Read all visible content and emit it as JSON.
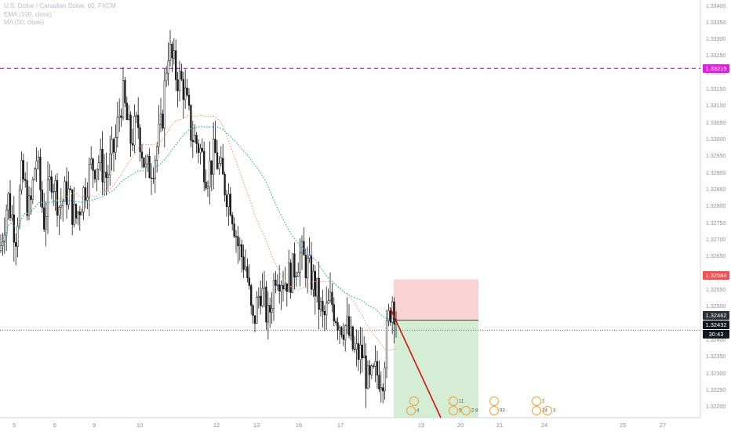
{
  "legend": {
    "symbol": "U.S. Dollar / Canadian Dollar, 60, FXCM",
    "ema": "EMA (100, close)",
    "ma": "MA (50, close)"
  },
  "colors": {
    "candle": "#1a1a1a",
    "ema": "#26b0c8",
    "ma": "#f5a06e",
    "resistance": "#e020e0",
    "stop": "#f7c8c8",
    "target": "#cbe8cb",
    "projection": "#d01010",
    "stop_label": "#ef5350",
    "entry_label": "#2a2e39",
    "last_label": "#131722"
  },
  "chart_data": {
    "type": "candlestick",
    "title": "U.S. Dollar / Canadian Dollar, 60, FXCM",
    "y_axis": {
      "min": 1.3217,
      "max": 1.3342,
      "ticks": [
        "1.33400",
        "1.33350",
        "1.33300",
        "1.33250",
        "1.33200",
        "1.33150",
        "1.33100",
        "1.33050",
        "1.33000",
        "1.32950",
        "1.32900",
        "1.32850",
        "1.32800",
        "1.32750",
        "1.32700",
        "1.32650",
        "1.32600",
        "1.32550",
        "1.32500",
        "1.32450",
        "1.32400",
        "1.32350",
        "1.32300",
        "1.32250",
        "1.32200"
      ]
    },
    "x_axis": {
      "ticks": [
        "5",
        "6",
        "9",
        "10",
        "12",
        "13",
        "16",
        "17",
        "19",
        "20",
        "21",
        "24",
        "25",
        "27"
      ]
    },
    "price_labels": {
      "resistance": "1.33215",
      "stop": "1.32584",
      "entry": "1.32462",
      "last": "1.32432",
      "countdown": "30:43"
    },
    "indicators": [
      "EMA (100, close)",
      "MA (50, close)"
    ],
    "path_anchors": [
      [
        0,
        1.3267
      ],
      [
        10,
        1.3283
      ],
      [
        20,
        1.3272
      ],
      [
        28,
        1.329
      ],
      [
        38,
        1.3278
      ],
      [
        46,
        1.3296
      ],
      [
        56,
        1.3276
      ],
      [
        66,
        1.329
      ],
      [
        76,
        1.328
      ],
      [
        86,
        1.3285
      ],
      [
        96,
        1.3276
      ],
      [
        106,
        1.3284
      ],
      [
        116,
        1.3292
      ],
      [
        126,
        1.3294
      ],
      [
        136,
        1.3289
      ],
      [
        146,
        1.3298
      ],
      [
        156,
        1.3314
      ],
      [
        166,
        1.33
      ],
      [
        176,
        1.3305
      ],
      [
        186,
        1.329
      ],
      [
        196,
        1.3294
      ],
      [
        206,
        1.3304
      ],
      [
        214,
        1.3328
      ],
      [
        224,
        1.332
      ],
      [
        234,
        1.3316
      ],
      [
        244,
        1.3302
      ],
      [
        254,
        1.3298
      ],
      [
        264,
        1.329
      ],
      [
        274,
        1.3296
      ],
      [
        284,
        1.3288
      ],
      [
        294,
        1.3282
      ],
      [
        304,
        1.3268
      ],
      [
        314,
        1.3262
      ],
      [
        322,
        1.3244
      ],
      [
        332,
        1.3256
      ],
      [
        342,
        1.3246
      ],
      [
        352,
        1.3262
      ],
      [
        362,
        1.3258
      ],
      [
        372,
        1.326
      ],
      [
        382,
        1.3266
      ],
      [
        392,
        1.3262
      ],
      [
        402,
        1.3256
      ],
      [
        412,
        1.3246
      ],
      [
        422,
        1.3252
      ],
      [
        432,
        1.3246
      ],
      [
        442,
        1.3244
      ],
      [
        452,
        1.3236
      ],
      [
        462,
        1.3236
      ],
      [
        470,
        1.3226
      ],
      [
        478,
        1.323
      ],
      [
        488,
        1.323
      ],
      [
        494,
        1.3244
      ],
      [
        500,
        1.3253
      ],
      [
        506,
        1.3247
      ]
    ],
    "trade": {
      "stop": 1.32584,
      "entry": 1.32462,
      "target": 1.3217
    },
    "events": [
      {
        "row": "top",
        "text": ""
      },
      {
        "row": "top",
        "text": "11"
      },
      {
        "row": "top",
        "text": ""
      },
      {
        "row": "top",
        "text": "2"
      },
      {
        "row": "bottom",
        "text": "4"
      },
      {
        "row": "bottom",
        "text": "5"
      },
      {
        "row": "bottom",
        "text": "2 8"
      },
      {
        "row": "bottom",
        "text": "93"
      },
      {
        "row": "bottom",
        "text": "24"
      },
      {
        "row": "bottom",
        "text": "3"
      }
    ]
  }
}
